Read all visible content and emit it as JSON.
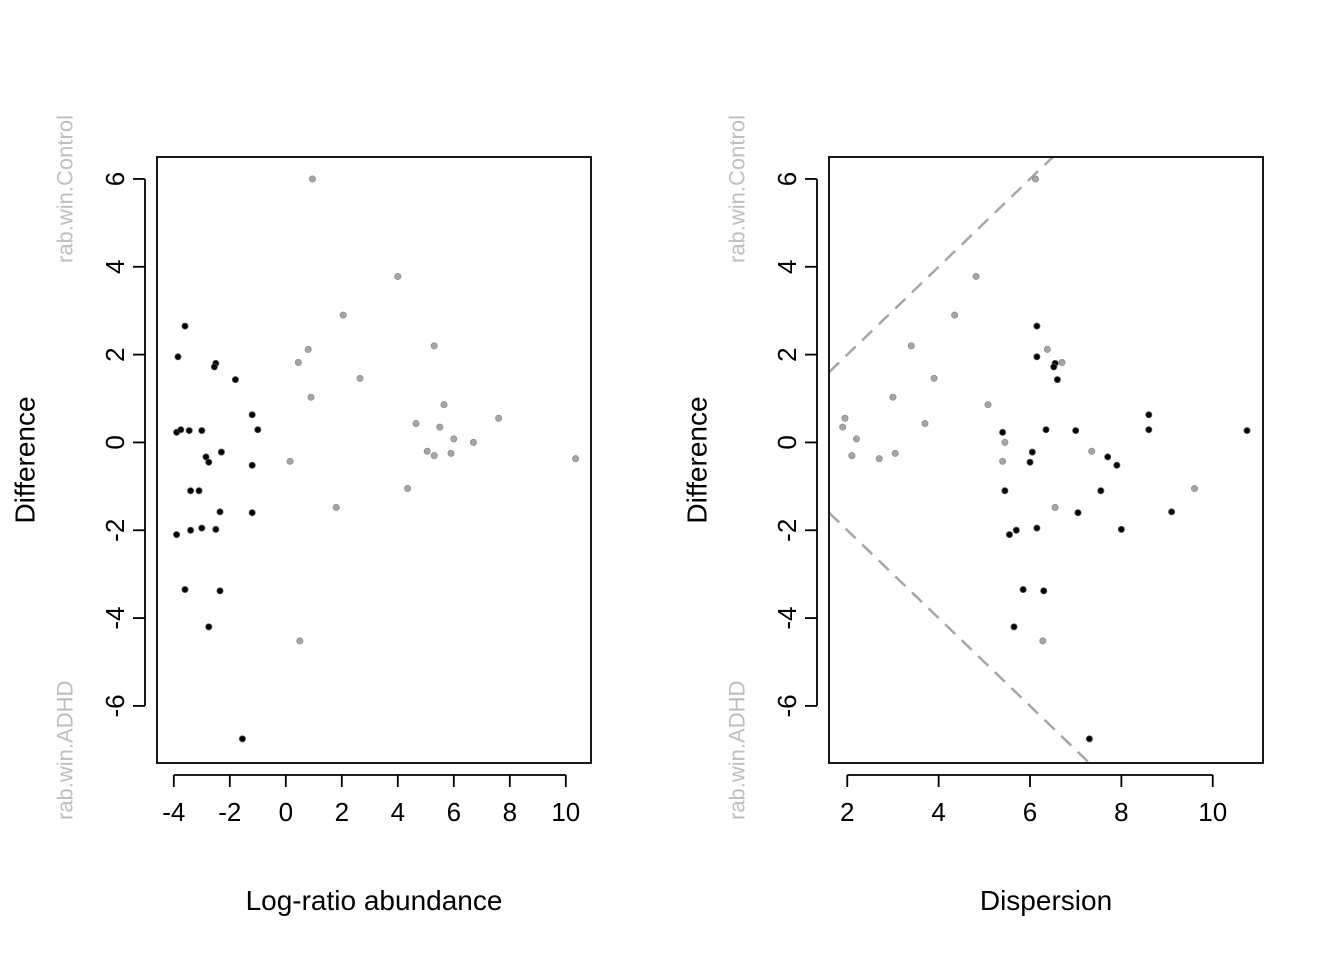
{
  "colors": {
    "sig_points": "#000000",
    "nonsig_points": "#a6a6a6",
    "side_labels": "#bebebe",
    "threshold_lines": "#a6a6a6"
  },
  "chart_data": [
    {
      "type": "scatter",
      "xlabel": "Log-ratio abundance",
      "ylabel": "Difference",
      "top_label": "rab.win.Control",
      "bottom_label": "rab.win.ADHD",
      "xlim": [
        -4.6,
        10.9
      ],
      "ylim": [
        -7.3,
        6.5
      ],
      "xticks": [
        -4,
        -2,
        0,
        2,
        4,
        6,
        8,
        10
      ],
      "yticks": [
        -6,
        -4,
        -2,
        0,
        2,
        4,
        6
      ],
      "series": [
        {
          "points": [
            [
              -3.6,
              2.65
            ],
            [
              -3.85,
              1.95
            ],
            [
              -2.5,
              1.8
            ],
            [
              -2.55,
              1.72
            ],
            [
              -1.8,
              1.43
            ],
            [
              -1.2,
              0.63
            ],
            [
              -1.0,
              0.29
            ],
            [
              -3.9,
              0.23
            ],
            [
              -3.75,
              0.29
            ],
            [
              -3.45,
              0.27
            ],
            [
              -3.0,
              0.27
            ],
            [
              -2.3,
              -0.22
            ],
            [
              -2.85,
              -0.33
            ],
            [
              -2.75,
              -0.45
            ],
            [
              -1.2,
              -0.52
            ],
            [
              -3.4,
              -1.1
            ],
            [
              -3.1,
              -1.1
            ],
            [
              -2.35,
              -1.58
            ],
            [
              -1.2,
              -1.6
            ],
            [
              -3.4,
              -2.0
            ],
            [
              -3.0,
              -1.95
            ],
            [
              -2.5,
              -1.98
            ],
            [
              -3.9,
              -2.1
            ],
            [
              -3.6,
              -3.35
            ],
            [
              -2.35,
              -3.38
            ],
            [
              -2.75,
              -4.2
            ],
            [
              -1.55,
              -6.75
            ]
          ]
        },
        {
          "points": [
            [
              0.95,
              6.0
            ],
            [
              4.0,
              3.78
            ],
            [
              2.05,
              2.9
            ],
            [
              5.3,
              2.2
            ],
            [
              0.8,
              2.12
            ],
            [
              0.45,
              1.82
            ],
            [
              2.65,
              1.46
            ],
            [
              0.9,
              1.03
            ],
            [
              5.65,
              0.86
            ],
            [
              7.6,
              0.55
            ],
            [
              4.65,
              0.43
            ],
            [
              5.5,
              0.35
            ],
            [
              6.0,
              0.08
            ],
            [
              6.7,
              0.0
            ],
            [
              5.05,
              -0.2
            ],
            [
              5.3,
              -0.3
            ],
            [
              5.9,
              -0.25
            ],
            [
              0.15,
              -0.43
            ],
            [
              10.35,
              -0.37
            ],
            [
              4.35,
              -1.05
            ],
            [
              1.8,
              -1.48
            ],
            [
              0.5,
              -4.52
            ]
          ]
        }
      ]
    },
    {
      "type": "scatter",
      "xlabel": "Dispersion",
      "ylabel": "Difference",
      "top_label": "rab.win.Control",
      "bottom_label": "rab.win.ADHD",
      "xlim": [
        1.6,
        11.1
      ],
      "ylim": [
        -7.3,
        6.5
      ],
      "xticks": [
        2,
        4,
        6,
        8,
        10
      ],
      "yticks": [
        -6,
        -4,
        -2,
        0,
        2,
        4,
        6
      ],
      "threshold_lines": [
        {
          "slope": 1,
          "intercept": 0
        },
        {
          "slope": -1,
          "intercept": 0
        }
      ],
      "series": [
        {
          "points": [
            [
              6.15,
              2.65
            ],
            [
              6.15,
              1.95
            ],
            [
              6.55,
              1.8
            ],
            [
              6.52,
              1.72
            ],
            [
              6.6,
              1.43
            ],
            [
              8.6,
              0.63
            ],
            [
              8.6,
              0.29
            ],
            [
              5.4,
              0.23
            ],
            [
              6.35,
              0.29
            ],
            [
              7.0,
              0.27
            ],
            [
              10.75,
              0.27
            ],
            [
              6.05,
              -0.22
            ],
            [
              7.7,
              -0.33
            ],
            [
              6.0,
              -0.45
            ],
            [
              7.9,
              -0.52
            ],
            [
              5.45,
              -1.1
            ],
            [
              7.55,
              -1.1
            ],
            [
              9.1,
              -1.58
            ],
            [
              7.05,
              -1.6
            ],
            [
              5.7,
              -2.0
            ],
            [
              6.15,
              -1.95
            ],
            [
              8.0,
              -1.98
            ],
            [
              5.55,
              -2.1
            ],
            [
              5.85,
              -3.35
            ],
            [
              6.3,
              -3.38
            ],
            [
              5.65,
              -4.2
            ],
            [
              7.3,
              -6.75
            ]
          ]
        },
        {
          "points": [
            [
              6.12,
              6.0
            ],
            [
              4.82,
              3.78
            ],
            [
              4.35,
              2.9
            ],
            [
              3.4,
              2.2
            ],
            [
              6.38,
              2.12
            ],
            [
              6.7,
              1.82
            ],
            [
              3.9,
              1.46
            ],
            [
              3.0,
              1.03
            ],
            [
              5.08,
              0.86
            ],
            [
              1.95,
              0.55
            ],
            [
              3.7,
              0.43
            ],
            [
              1.9,
              0.35
            ],
            [
              2.2,
              0.08
            ],
            [
              5.45,
              0.0
            ],
            [
              7.35,
              -0.2
            ],
            [
              2.1,
              -0.3
            ],
            [
              3.05,
              -0.25
            ],
            [
              5.4,
              -0.43
            ],
            [
              2.7,
              -0.37
            ],
            [
              9.6,
              -1.05
            ],
            [
              6.55,
              -1.48
            ],
            [
              6.28,
              -4.52
            ]
          ]
        }
      ]
    }
  ]
}
